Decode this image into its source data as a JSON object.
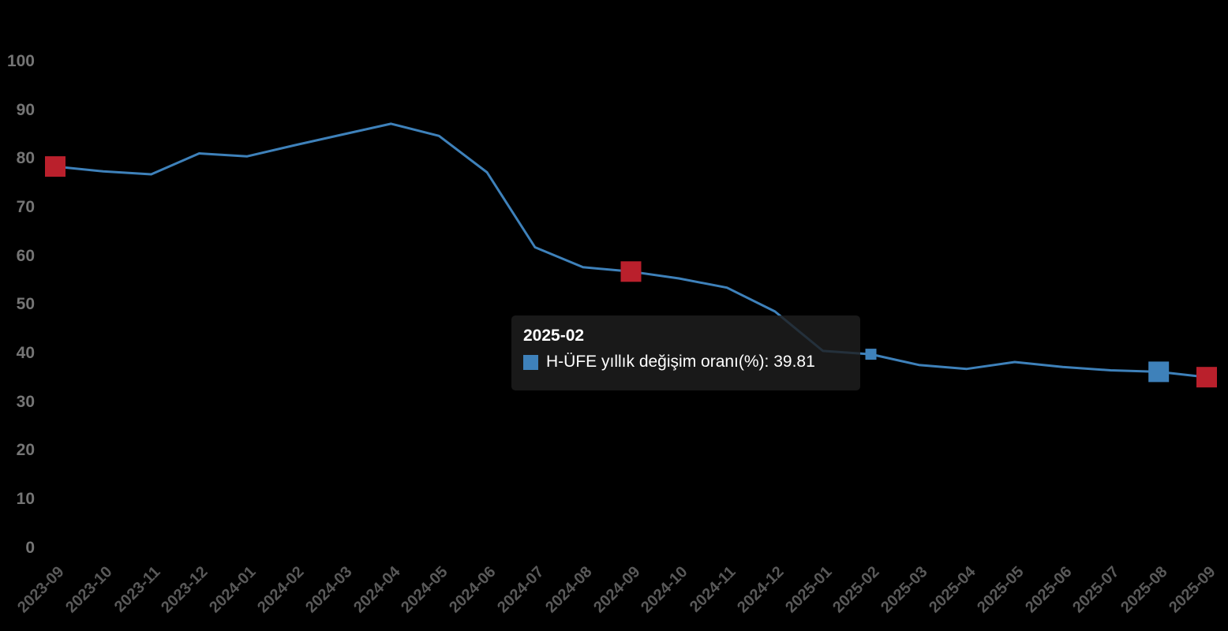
{
  "chart_data": {
    "type": "line",
    "title": "",
    "xlabel": "",
    "ylabel": "",
    "categories": [
      "2023-09",
      "2023-10",
      "2023-11",
      "2023-12",
      "2024-01",
      "2024-02",
      "2024-03",
      "2024-04",
      "2024-05",
      "2024-06",
      "2024-07",
      "2024-08",
      "2024-09",
      "2024-10",
      "2024-11",
      "2024-12",
      "2025-01",
      "2025-02",
      "2025-03",
      "2025-04",
      "2025-05",
      "2025-06",
      "2025-07",
      "2025-08",
      "2025-09"
    ],
    "series": [
      {
        "name": "H-ÜFE yıllık değişim oranı(%)",
        "values": [
          78.4,
          77.4,
          76.8,
          81.1,
          80.5,
          82.8,
          85.0,
          87.2,
          84.7,
          77.2,
          61.8,
          57.7,
          56.8,
          55.4,
          53.5,
          48.6,
          40.5,
          39.81,
          37.6,
          36.8,
          38.2,
          37.2,
          36.5,
          36.2,
          35.1
        ]
      }
    ],
    "ylim": [
      0,
      100
    ],
    "yticks": [
      0,
      10,
      20,
      30,
      40,
      50,
      60,
      70,
      80,
      90,
      100
    ],
    "x_tick_rotation": 45,
    "grid": false,
    "legend": "none",
    "highlighted_points": [
      {
        "category": "2023-09",
        "marker": "square",
        "color_key": "red_marker"
      },
      {
        "category": "2024-09",
        "marker": "square",
        "color_key": "red_marker"
      },
      {
        "category": "2025-02",
        "marker": "square-small",
        "color_key": "blue_marker",
        "hovered": true
      },
      {
        "category": "2025-08",
        "marker": "square",
        "color_key": "blue_marker"
      },
      {
        "category": "2025-09",
        "marker": "square",
        "color_key": "red_marker"
      }
    ]
  },
  "tooltip": {
    "title": "2025-02",
    "series_label": "H-ÜFE yıllık değişim oranı(%)",
    "value": "39.81",
    "text": "H-ÜFE yıllık değişim oranı(%): 39.81"
  },
  "colors": {
    "background": "#000000",
    "line": "#3e81ba",
    "red_marker": "#ba202c",
    "blue_marker": "#3e81ba",
    "y_axis_label": "#757575",
    "x_axis_label": "#5a5a5a",
    "tooltip_text": "#ffffff"
  }
}
